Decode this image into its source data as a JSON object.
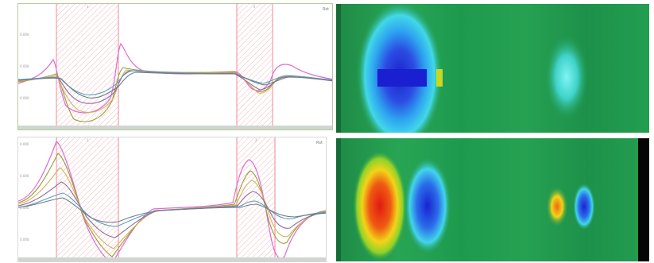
{
  "panels": {
    "top_plot": {
      "button_label": "Rst",
      "cursor_labels": [
        "1",
        "2"
      ]
    },
    "bottom_plot": {
      "button_label": "Rst",
      "cursor_labels": [
        "1",
        "2"
      ]
    }
  },
  "colors": {
    "highlight": "#f6b2b8",
    "series": [
      "#e06ad6",
      "#9b9b35",
      "#d5b25f",
      "#8f6b9e",
      "#5aa0b8",
      "#6f7a8a"
    ],
    "heatmap_base": "#1e9a4e"
  }
}
